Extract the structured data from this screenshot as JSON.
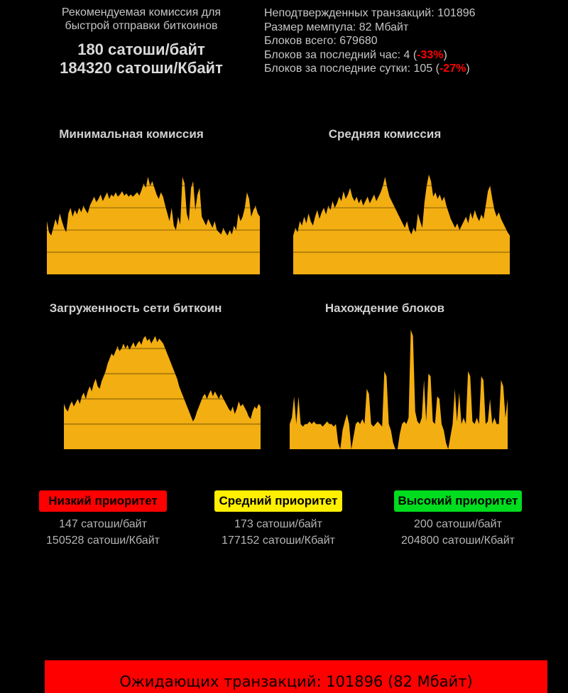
{
  "page": {
    "background": "#000000",
    "accent_gold": "#F3AE11",
    "alert_red": "#FF0000"
  },
  "header": {
    "left": {
      "line1": "Рекомендуемая комиссия для",
      "line2": "быстрой отправки биткоинов",
      "fee_per_byte": "180 сатоши/байт",
      "fee_per_kbyte": "184320 сатоши/Кбайт"
    },
    "right": {
      "unconfirmed": "Неподтвержденных транзакций: 101896",
      "mempool": "Размер мемпула: 82 Мбайт",
      "blocks_total": "Блоков всего: 679680",
      "blocks_hour_prefix": "Блоков за последний час: 4 (",
      "blocks_hour_pct": "-33%",
      "blocks_hour_suffix": ")",
      "blocks_day_prefix": "Блоков за последние сутки: 105 (",
      "blocks_day_pct": "-27%",
      "blocks_day_suffix": ")",
      "pct_color": "#FF0000"
    }
  },
  "chart_data": [
    {
      "type": "area",
      "title": "Минимальная комиссия",
      "color": "#F3AE11",
      "grid": true,
      "ylim": [
        0,
        100
      ],
      "xlabel": "",
      "ylabel": "",
      "values": [
        48,
        38,
        35,
        42,
        50,
        44,
        55,
        48,
        42,
        38,
        55,
        60,
        52,
        58,
        54,
        60,
        56,
        62,
        58,
        55,
        62,
        66,
        70,
        65,
        68,
        72,
        66,
        70,
        74,
        68,
        72,
        70,
        74,
        70,
        72,
        75,
        71,
        73,
        70,
        72,
        70,
        72,
        74,
        71,
        76,
        82,
        78,
        88,
        80,
        84,
        78,
        72,
        68,
        74,
        70,
        62,
        55,
        48,
        60,
        44,
        40,
        52,
        45,
        88,
        82,
        55,
        48,
        78,
        84,
        58,
        72,
        78,
        52,
        48,
        44,
        50,
        46,
        42,
        48,
        40,
        38,
        36,
        42,
        38,
        35,
        40,
        36,
        44,
        40,
        55,
        48,
        52,
        60,
        74,
        68,
        52,
        58,
        62,
        55,
        52
      ]
    },
    {
      "type": "area",
      "title": "Средняя комиссия",
      "color": "#F3AE11",
      "grid": true,
      "ylim": [
        0,
        100
      ],
      "xlabel": "",
      "ylabel": "",
      "values": [
        35,
        42,
        38,
        48,
        44,
        52,
        46,
        55,
        48,
        44,
        52,
        58,
        50,
        56,
        60,
        54,
        62,
        58,
        66,
        60,
        64,
        70,
        66,
        75,
        68,
        72,
        78,
        70,
        66,
        70,
        64,
        68,
        62,
        66,
        70,
        64,
        68,
        72,
        66,
        70,
        74,
        80,
        88,
        78,
        70,
        66,
        62,
        58,
        54,
        50,
        46,
        42,
        48,
        40,
        36,
        42,
        38,
        55,
        48,
        42,
        65,
        80,
        90,
        84,
        70,
        74,
        68,
        72,
        66,
        70,
        62,
        56,
        50,
        46,
        42,
        46,
        40,
        44,
        48,
        52,
        46,
        56,
        50,
        58,
        52,
        48,
        54,
        50,
        62,
        75,
        80,
        68,
        58,
        52,
        56,
        50,
        46,
        42,
        38,
        35
      ]
    },
    {
      "type": "area",
      "title": "Загруженность сети биткоин",
      "color": "#F3AE11",
      "grid": true,
      "ylim": [
        0,
        100
      ],
      "xlabel": "",
      "ylabel": "",
      "values": [
        36,
        32,
        30,
        35,
        38,
        34,
        37,
        40,
        36,
        42,
        45,
        40,
        46,
        50,
        46,
        52,
        56,
        50,
        48,
        54,
        58,
        62,
        68,
        72,
        76,
        74,
        78,
        82,
        78,
        80,
        84,
        80,
        83,
        79,
        82,
        85,
        81,
        84,
        86,
        83,
        88,
        90,
        86,
        88,
        84,
        87,
        90,
        85,
        88,
        86,
        84,
        80,
        76,
        72,
        68,
        64,
        60,
        56,
        50,
        46,
        42,
        38,
        34,
        30,
        26,
        22,
        25,
        30,
        34,
        38,
        42,
        44,
        40,
        44,
        47,
        42,
        46,
        43,
        40,
        44,
        41,
        38,
        35,
        32,
        30,
        34,
        28,
        32,
        38,
        34,
        36,
        33,
        30,
        26,
        24,
        30,
        34,
        32,
        36,
        34
      ]
    },
    {
      "type": "area",
      "title": "Нахождение блоков",
      "color": "#F3AE11",
      "grid": false,
      "ylim": [
        0,
        100
      ],
      "xlabel": "",
      "ylabel": "",
      "values": [
        20,
        25,
        42,
        20,
        42,
        20,
        18,
        20,
        20,
        22,
        20,
        22,
        20,
        20,
        20,
        18,
        20,
        22,
        20,
        20,
        18,
        20,
        5,
        0,
        15,
        22,
        28,
        20,
        0,
        10,
        20,
        22,
        20,
        24,
        20,
        48,
        44,
        20,
        18,
        20,
        22,
        20,
        18,
        62,
        58,
        20,
        15,
        5,
        0,
        0,
        12,
        20,
        22,
        20,
        25,
        95,
        90,
        30,
        22,
        20,
        25,
        55,
        22,
        60,
        58,
        22,
        20,
        42,
        40,
        20,
        15,
        5,
        0,
        10,
        20,
        48,
        22,
        45,
        20,
        25,
        20,
        62,
        58,
        22,
        20,
        25,
        20,
        58,
        55,
        20,
        22,
        40,
        20,
        25,
        20,
        20,
        55,
        50,
        25,
        40
      ]
    }
  ],
  "priorities": [
    {
      "label": "Низкий приоритет",
      "color": "#FF0000",
      "per_byte": "147 сатоши/байт",
      "per_kbyte": "150528 сатоши/Кбайт"
    },
    {
      "label": "Средний приоритет",
      "color": "#FFEF00",
      "per_byte": "173 сатоши/байт",
      "per_kbyte": "177152 сатоши/Кбайт"
    },
    {
      "label": "Высокий приоритет",
      "color": "#00DC1E",
      "per_byte": "200 сатоши/байт",
      "per_kbyte": "204800 сатоши/Кбайт"
    }
  ],
  "banner": {
    "text": "Ожидающих транзакций: 101896 (82 Мбайт)",
    "color": "#FF0000"
  }
}
